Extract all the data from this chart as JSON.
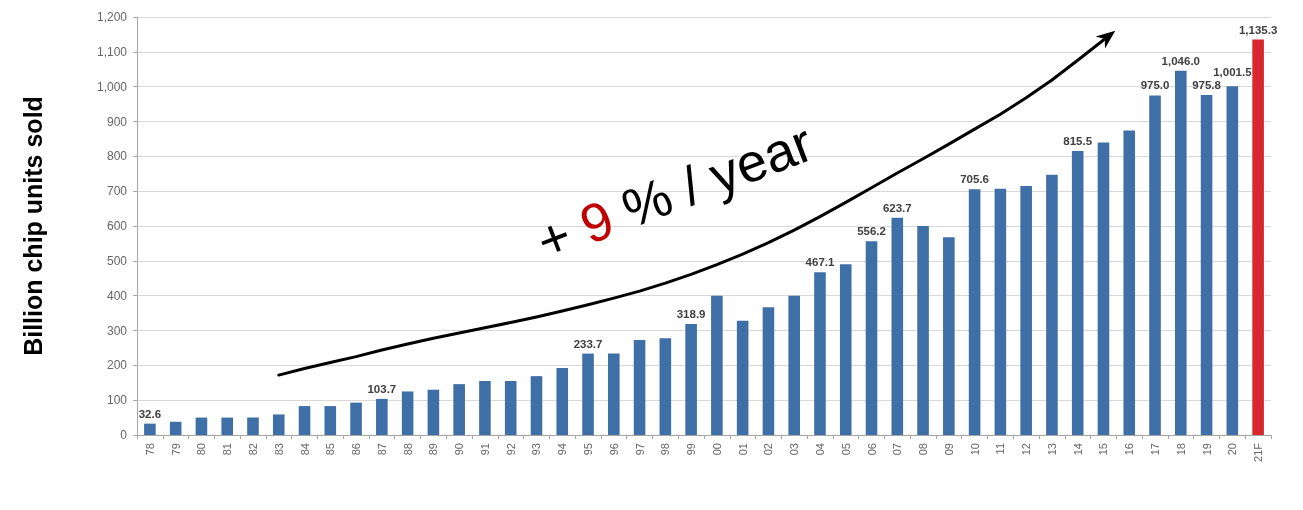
{
  "chart_data": {
    "type": "bar",
    "ylabel": "Billion chip units sold",
    "categories": [
      "78",
      "79",
      "80",
      "81",
      "82",
      "83",
      "84",
      "85",
      "86",
      "87",
      "88",
      "89",
      "90",
      "91",
      "92",
      "93",
      "94",
      "95",
      "96",
      "97",
      "98",
      "99",
      "00",
      "01",
      "02",
      "03",
      "04",
      "05",
      "06",
      "07",
      "08",
      "09",
      "10",
      "11",
      "12",
      "13",
      "14",
      "15",
      "16",
      "17",
      "18",
      "19",
      "20",
      "21F"
    ],
    "series": [
      {
        "values": [
          32.6,
          38,
          50,
          50,
          50,
          59,
          83,
          83,
          93,
          103.7,
          125,
          130,
          146,
          155,
          155,
          169,
          192,
          233.7,
          234,
          273,
          278,
          318.9,
          400,
          328,
          367,
          400,
          467.1,
          490,
          556.2,
          623.7,
          600,
          568,
          705.6,
          707,
          715,
          747,
          815.5,
          840,
          874,
          975.0,
          1046.0,
          975.8,
          1001.5,
          1135.3
        ],
        "colors": [
          "#3e6fa6",
          "#3e6fa6",
          "#3e6fa6",
          "#3e6fa6",
          "#3e6fa6",
          "#3e6fa6",
          "#3e6fa6",
          "#3e6fa6",
          "#3e6fa6",
          "#3e6fa6",
          "#3e6fa6",
          "#3e6fa6",
          "#3e6fa6",
          "#3e6fa6",
          "#3e6fa6",
          "#3e6fa6",
          "#3e6fa6",
          "#3e6fa6",
          "#3e6fa6",
          "#3e6fa6",
          "#3e6fa6",
          "#3e6fa6",
          "#3e6fa6",
          "#3e6fa6",
          "#3e6fa6",
          "#3e6fa6",
          "#3e6fa6",
          "#3e6fa6",
          "#3e6fa6",
          "#3e6fa6",
          "#3e6fa6",
          "#3e6fa6",
          "#3e6fa6",
          "#3e6fa6",
          "#3e6fa6",
          "#3e6fa6",
          "#3e6fa6",
          "#3e6fa6",
          "#3e6fa6",
          "#3e6fa6",
          "#3e6fa6",
          "#3e6fa6",
          "#3e6fa6",
          "#d8282e"
        ],
        "value_labels": [
          "32.6",
          null,
          null,
          null,
          null,
          null,
          null,
          null,
          null,
          "103.7",
          null,
          null,
          null,
          null,
          null,
          null,
          null,
          "233.7",
          null,
          null,
          null,
          "318.9",
          null,
          null,
          null,
          null,
          "467.1",
          null,
          "556.2",
          "623.7",
          null,
          null,
          "705.6",
          null,
          null,
          null,
          "815.5",
          null,
          null,
          "975.0",
          "1,046.0",
          "975.8",
          "1,001.5",
          "1,135.3"
        ]
      },
      {
        "type": "line",
        "color": "#000000",
        "x": [
          "83",
          "84",
          "85",
          "86",
          "87",
          "88",
          "89",
          "90",
          "91",
          "92",
          "93",
          "94",
          "95",
          "96",
          "97",
          "98",
          "99",
          "00",
          "01",
          "02",
          "03",
          "04",
          "05",
          "06",
          "07",
          "08",
          "09",
          "10",
          "11",
          "12",
          "13",
          "14",
          "15"
        ],
        "values": [
          172,
          191,
          208,
          225,
          244,
          261,
          278,
          293,
          308,
          323,
          339,
          356,
          374,
          393,
          413,
          436,
          461,
          489,
          519,
          552,
          588,
          627,
          668,
          710,
          752,
          793,
          835,
          878,
          921,
          968,
          1019,
          1076,
          1134
        ]
      }
    ],
    "ylim": [
      0,
      1200
    ],
    "yticks": [
      0,
      100,
      200,
      300,
      400,
      500,
      600,
      700,
      800,
      900,
      {
        "value": 1000,
        "label": "1,000"
      },
      {
        "value": 1100,
        "label": "1,100"
      },
      {
        "value": 1200,
        "label": "1,200"
      }
    ],
    "grid": "y",
    "annotations": [
      "+ 9 % / year"
    ]
  }
}
